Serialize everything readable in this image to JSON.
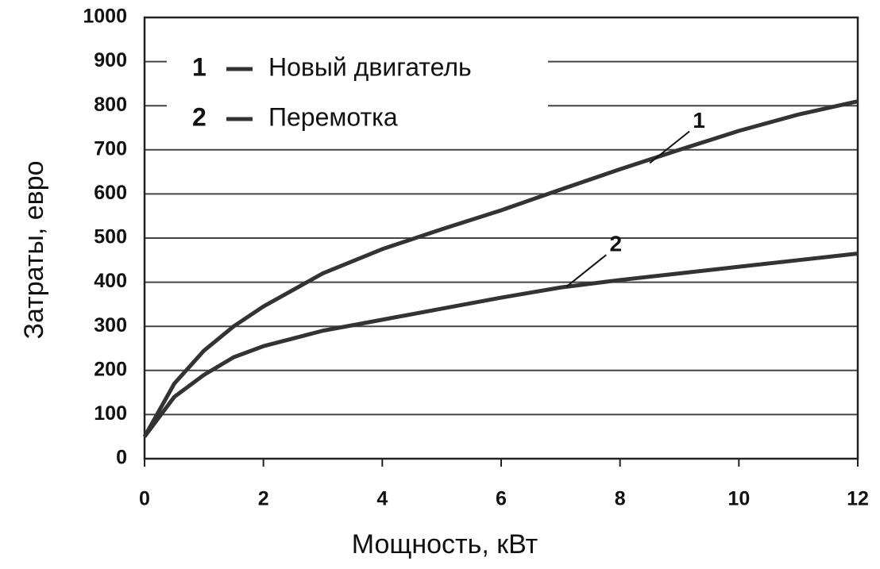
{
  "chart_data": {
    "type": "line",
    "x_label": "Мощность, кВт",
    "y_label": "Затраты, евро",
    "x": [
      0,
      0.5,
      1,
      1.5,
      2,
      3,
      4,
      5,
      6,
      7,
      8,
      9,
      10,
      11,
      12
    ],
    "series": [
      {
        "name": "Новый двигатель",
        "label": "1",
        "color": "#333333",
        "values": [
          50,
          170,
          245,
          300,
          345,
          420,
          475,
          520,
          563,
          610,
          656,
          700,
          743,
          780,
          810
        ]
      },
      {
        "name": "Перемотка",
        "label": "2",
        "color": "#333333",
        "values": [
          50,
          140,
          190,
          230,
          255,
          290,
          315,
          340,
          365,
          388,
          405,
          420,
          435,
          450,
          465
        ]
      }
    ],
    "annotations": [
      {
        "text": "1",
        "x": 8.5,
        "y": 670
      },
      {
        "text": "2",
        "x": 7.1,
        "y": 390
      }
    ],
    "xlim": [
      0,
      12
    ],
    "xticks": [
      0,
      2,
      4,
      6,
      8,
      10,
      12
    ],
    "ylim": [
      0,
      1000
    ],
    "yticks": [
      0,
      100,
      200,
      300,
      400,
      500,
      600,
      700,
      800,
      900,
      1000
    ],
    "grid": true,
    "legend": "upper left"
  }
}
